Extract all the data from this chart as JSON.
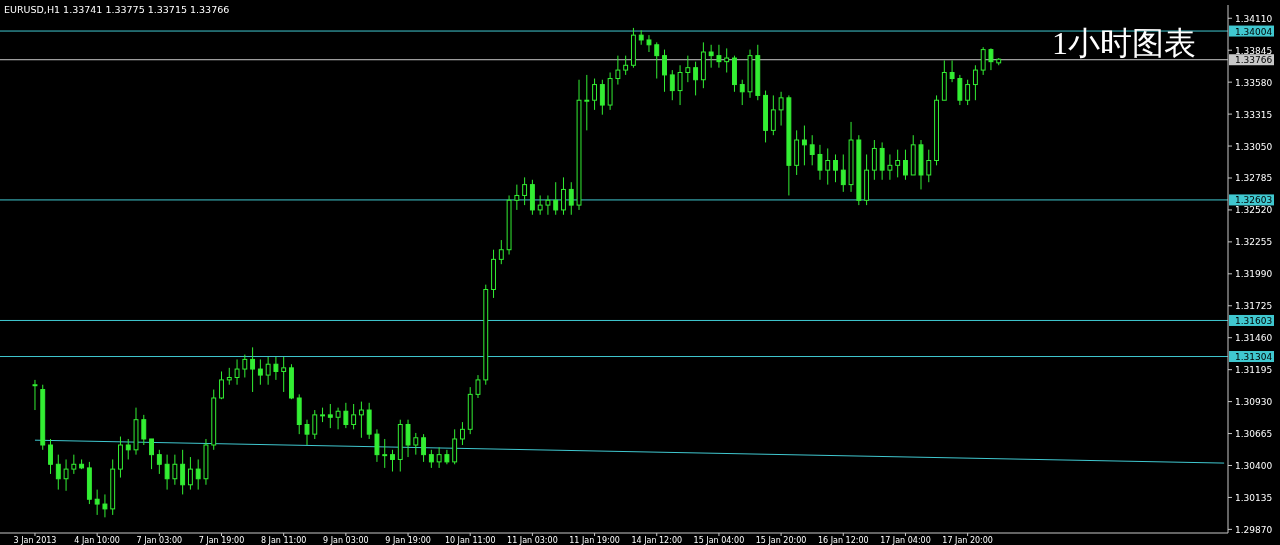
{
  "chart_data": {
    "type": "candlestick",
    "title": "EURUSD,H1  1.33741 1.33775 1.33715 1.33766",
    "annotations": [
      "1小时图表"
    ],
    "color": "#33ee33",
    "categories": [
      "3 Jan 2013",
      null,
      null,
      null,
      null,
      null,
      null,
      null,
      "4 Jan 10:00",
      null,
      null,
      null,
      null,
      null,
      null,
      null,
      "7 Jan 03:00",
      null,
      null,
      null,
      null,
      null,
      null,
      null,
      "7 Jan 19:00",
      null,
      null,
      null,
      null,
      null,
      null,
      null,
      "8 Jan 11:00",
      null,
      null,
      null,
      null,
      null,
      null,
      null,
      "9 Jan 03:00",
      null,
      null,
      null,
      null,
      null,
      null,
      null,
      "9 Jan 19:00",
      null,
      null,
      null,
      null,
      null,
      null,
      null,
      "10 Jan 11:00",
      null,
      null,
      null,
      null,
      null,
      null,
      null,
      "11 Jan 03:00",
      null,
      null,
      null,
      null,
      null,
      null,
      null,
      "11 Jan 19:00",
      null,
      null,
      null,
      null,
      null,
      null,
      null,
      "14 Jan 12:00",
      null,
      null,
      null,
      null,
      null,
      null,
      null,
      "15 Jan 04:00",
      null,
      null,
      null,
      null,
      null,
      null,
      null,
      "15 Jan 20:00",
      null,
      null,
      null,
      null,
      null,
      null,
      null,
      "16 Jan 12:00",
      null,
      null,
      null,
      null,
      null,
      null,
      null,
      "17 Jan 04:00",
      null,
      null,
      null,
      null,
      null,
      null,
      null,
      "17 Jan 20:00",
      null,
      null,
      null,
      null,
      null,
      null,
      null,
      null,
      null,
      null,
      null,
      null,
      null,
      null,
      null,
      null,
      null,
      null,
      null,
      null,
      null,
      null,
      null,
      null,
      null,
      null,
      null,
      null,
      null,
      null,
      null,
      null,
      null
    ],
    "ohlc": [
      [
        1.3107,
        1.3111,
        1.3086,
        1.3107
      ],
      [
        1.3103,
        1.3107,
        1.3053,
        1.3057
      ],
      [
        1.3057,
        1.3062,
        1.3033,
        1.3041
      ],
      [
        1.3041,
        1.3049,
        1.302,
        1.3029
      ],
      [
        1.3029,
        1.3045,
        1.3019,
        1.3037
      ],
      [
        1.3037,
        1.3049,
        1.3033,
        1.3041
      ],
      [
        1.3041,
        1.3045,
        1.3037,
        1.3038
      ],
      [
        1.3038,
        1.3043,
        1.3008,
        1.3012
      ],
      [
        1.3012,
        1.302,
        1.2999,
        1.3008
      ],
      [
        1.3008,
        1.3016,
        1.2997,
        1.3004
      ],
      [
        1.3004,
        1.3045,
        1.2999,
        1.3037
      ],
      [
        1.3037,
        1.3064,
        1.303,
        1.3057
      ],
      [
        1.3057,
        1.3062,
        1.3045,
        1.3053
      ],
      [
        1.3053,
        1.3088,
        1.3049,
        1.3078
      ],
      [
        1.3078,
        1.3082,
        1.3057,
        1.3062
      ],
      [
        1.3062,
        1.3062,
        1.3037,
        1.3049
      ],
      [
        1.3049,
        1.3053,
        1.3033,
        1.3041
      ],
      [
        1.3041,
        1.3049,
        1.302,
        1.3029
      ],
      [
        1.3029,
        1.3049,
        1.3024,
        1.3041
      ],
      [
        1.3041,
        1.3053,
        1.3016,
        1.3024
      ],
      [
        1.3024,
        1.3047,
        1.302,
        1.3037
      ],
      [
        1.3037,
        1.3045,
        1.302,
        1.3029
      ],
      [
        1.3029,
        1.3062,
        1.3024,
        1.3057
      ],
      [
        1.3057,
        1.3103,
        1.3053,
        1.3096
      ],
      [
        1.3096,
        1.3118,
        1.3095,
        1.3111
      ],
      [
        1.3111,
        1.3121,
        1.3107,
        1.3113
      ],
      [
        1.3113,
        1.3128,
        1.3107,
        1.312
      ],
      [
        1.312,
        1.3132,
        1.3113,
        1.3128
      ],
      [
        1.3128,
        1.3138,
        1.3101,
        1.312
      ],
      [
        1.312,
        1.3128,
        1.3107,
        1.3115
      ],
      [
        1.3115,
        1.313,
        1.3107,
        1.3124
      ],
      [
        1.3124,
        1.313,
        1.3111,
        1.3118
      ],
      [
        1.3118,
        1.313,
        1.3101,
        1.3121
      ],
      [
        1.3121,
        1.3124,
        1.3095,
        1.3096
      ],
      [
        1.3096,
        1.3099,
        1.3066,
        1.3074
      ],
      [
        1.3074,
        1.3078,
        1.3057,
        1.3066
      ],
      [
        1.3066,
        1.3086,
        1.3062,
        1.3082
      ],
      [
        1.3082,
        1.3088,
        1.3076,
        1.3082
      ],
      [
        1.3082,
        1.3091,
        1.3071,
        1.308
      ],
      [
        1.308,
        1.3088,
        1.307,
        1.3085
      ],
      [
        1.3085,
        1.3092,
        1.3071,
        1.3074
      ],
      [
        1.3074,
        1.3091,
        1.307,
        1.3082
      ],
      [
        1.3082,
        1.3093,
        1.3063,
        1.3086
      ],
      [
        1.3086,
        1.3092,
        1.3062,
        1.3066
      ],
      [
        1.3066,
        1.307,
        1.3043,
        1.3049
      ],
      [
        1.3049,
        1.3062,
        1.3038,
        1.3049
      ],
      [
        1.3049,
        1.3053,
        1.3035,
        1.3045
      ],
      [
        1.3045,
        1.3078,
        1.3035,
        1.3074
      ],
      [
        1.3074,
        1.3078,
        1.3047,
        1.3057
      ],
      [
        1.3057,
        1.3067,
        1.3049,
        1.3063
      ],
      [
        1.3063,
        1.3066,
        1.3043,
        1.3049
      ],
      [
        1.3049,
        1.3053,
        1.3038,
        1.3043
      ],
      [
        1.3043,
        1.3055,
        1.3038,
        1.3049
      ],
      [
        1.3049,
        1.3053,
        1.3041,
        1.3043
      ],
      [
        1.3043,
        1.307,
        1.3041,
        1.3062
      ],
      [
        1.3062,
        1.3076,
        1.3057,
        1.307
      ],
      [
        1.307,
        1.3105,
        1.3066,
        1.3099
      ],
      [
        1.3099,
        1.3115,
        1.3096,
        1.3111
      ],
      [
        1.3111,
        1.319,
        1.3107,
        1.3186
      ],
      [
        1.3186,
        1.3219,
        1.3179,
        1.3211
      ],
      [
        1.3211,
        1.3227,
        1.3207,
        1.3219
      ],
      [
        1.3219,
        1.3264,
        1.3215,
        1.326
      ],
      [
        1.326,
        1.3273,
        1.3252,
        1.3264
      ],
      [
        1.3264,
        1.3279,
        1.3256,
        1.3273
      ],
      [
        1.3273,
        1.3277,
        1.3248,
        1.3252
      ],
      [
        1.3252,
        1.3264,
        1.3248,
        1.3256
      ],
      [
        1.3256,
        1.3264,
        1.3248,
        1.326
      ],
      [
        1.326,
        1.3275,
        1.3248,
        1.3252
      ],
      [
        1.3252,
        1.3279,
        1.3248,
        1.3269
      ],
      [
        1.3269,
        1.3275,
        1.3248,
        1.3256
      ],
      [
        1.3256,
        1.336,
        1.3252,
        1.3343
      ],
      [
        1.3343,
        1.3364,
        1.3318,
        1.3343
      ],
      [
        1.3343,
        1.3361,
        1.3335,
        1.3356
      ],
      [
        1.3356,
        1.336,
        1.3331,
        1.3339
      ],
      [
        1.3339,
        1.3366,
        1.3335,
        1.3361
      ],
      [
        1.3361,
        1.338,
        1.3356,
        1.3368
      ],
      [
        1.3368,
        1.338,
        1.3364,
        1.3372
      ],
      [
        1.3372,
        1.3403,
        1.337,
        1.3397
      ],
      [
        1.3397,
        1.3401,
        1.3389,
        1.3393
      ],
      [
        1.3393,
        1.3397,
        1.3383,
        1.3389
      ],
      [
        1.3389,
        1.3391,
        1.3361,
        1.338
      ],
      [
        1.338,
        1.3385,
        1.335,
        1.3364
      ],
      [
        1.3364,
        1.3368,
        1.3343,
        1.3351
      ],
      [
        1.3351,
        1.3372,
        1.3339,
        1.3366
      ],
      [
        1.3366,
        1.338,
        1.3358,
        1.337
      ],
      [
        1.337,
        1.3375,
        1.3347,
        1.336
      ],
      [
        1.336,
        1.3391,
        1.3353,
        1.3383
      ],
      [
        1.3383,
        1.3389,
        1.337,
        1.338
      ],
      [
        1.338,
        1.3389,
        1.337,
        1.3375
      ],
      [
        1.3375,
        1.3386,
        1.3366,
        1.3378
      ],
      [
        1.3378,
        1.338,
        1.335,
        1.3356
      ],
      [
        1.3356,
        1.336,
        1.3339,
        1.335
      ],
      [
        1.335,
        1.3385,
        1.3345,
        1.338
      ],
      [
        1.338,
        1.3389,
        1.3343,
        1.3347
      ],
      [
        1.3347,
        1.3351,
        1.3308,
        1.3318
      ],
      [
        1.3318,
        1.3347,
        1.3314,
        1.3335
      ],
      [
        1.3335,
        1.335,
        1.3322,
        1.3345
      ],
      [
        1.3345,
        1.3347,
        1.3264,
        1.3289
      ],
      [
        1.3289,
        1.3318,
        1.3281,
        1.331
      ],
      [
        1.331,
        1.3322,
        1.3289,
        1.3306
      ],
      [
        1.3306,
        1.3314,
        1.3289,
        1.3298
      ],
      [
        1.3298,
        1.3306,
        1.3277,
        1.3285
      ],
      [
        1.3285,
        1.3303,
        1.3273,
        1.3293
      ],
      [
        1.3293,
        1.3298,
        1.3275,
        1.3285
      ],
      [
        1.3285,
        1.3298,
        1.3267,
        1.3273
      ],
      [
        1.3273,
        1.3325,
        1.3267,
        1.331
      ],
      [
        1.331,
        1.3314,
        1.3256,
        1.326
      ],
      [
        1.326,
        1.3298,
        1.3256,
        1.3285
      ],
      [
        1.3285,
        1.331,
        1.3277,
        1.3303
      ],
      [
        1.3303,
        1.3308,
        1.3277,
        1.3285
      ],
      [
        1.3285,
        1.3298,
        1.3277,
        1.3289
      ],
      [
        1.3289,
        1.3302,
        1.3279,
        1.3293
      ],
      [
        1.3293,
        1.3302,
        1.3277,
        1.3281
      ],
      [
        1.3281,
        1.3314,
        1.3281,
        1.3306
      ],
      [
        1.3306,
        1.331,
        1.3269,
        1.3281
      ],
      [
        1.3281,
        1.3302,
        1.3275,
        1.3293
      ],
      [
        1.3293,
        1.3347,
        1.3289,
        1.3343
      ],
      [
        1.3343,
        1.3376,
        1.3343,
        1.3366
      ],
      [
        1.3366,
        1.3376,
        1.3358,
        1.3361
      ],
      [
        1.3361,
        1.3364,
        1.3339,
        1.3343
      ],
      [
        1.3343,
        1.336,
        1.3339,
        1.3356
      ],
      [
        1.3356,
        1.3372,
        1.3343,
        1.3368
      ],
      [
        1.3368,
        1.3387,
        1.3364,
        1.3385
      ],
      [
        1.3385,
        1.3386,
        1.3368,
        1.3375
      ],
      [
        1.3374,
        1.3378,
        1.3372,
        1.3377
      ],
      null,
      null,
      null,
      null,
      null,
      null,
      null,
      null,
      null,
      null,
      null,
      null,
      null,
      null,
      null,
      null,
      null,
      null,
      null,
      null,
      null,
      null,
      null,
      null,
      null,
      null,
      null,
      null,
      null
    ],
    "series": [
      {
        "type": "line",
        "values": [
          1.3061,
          null,
          null,
          null,
          null,
          null,
          null,
          null,
          null,
          null,
          null,
          null,
          null,
          null,
          null,
          null,
          null,
          null,
          null,
          null,
          null,
          null,
          null,
          null,
          null,
          null,
          null,
          null,
          null,
          null,
          null,
          null,
          null,
          null,
          null,
          null,
          null,
          null,
          null,
          null,
          null,
          null,
          null,
          null,
          null,
          null,
          null,
          null,
          null,
          null,
          null,
          null,
          null,
          null,
          null,
          null,
          null,
          null,
          null,
          null,
          null,
          null,
          null,
          null,
          null,
          null,
          null,
          null,
          null,
          null,
          null,
          null,
          null,
          null,
          null,
          null,
          null,
          null,
          null,
          null,
          null,
          null,
          null,
          null,
          null,
          null,
          null,
          null,
          null,
          null,
          null,
          null,
          null,
          null,
          null,
          null,
          null,
          null,
          null,
          null,
          null,
          null,
          null,
          null,
          null,
          null,
          null,
          null,
          null,
          null,
          null,
          null,
          null,
          null,
          null,
          null,
          null,
          null,
          null,
          null,
          null,
          null,
          null,
          null,
          null,
          null,
          null,
          null,
          null,
          null,
          null,
          null,
          null,
          null,
          null,
          null,
          null,
          null,
          null,
          null,
          null,
          null,
          null,
          null,
          null,
          null,
          null,
          null,
          null,
          null,
          null,
          null,
          null,
          1.3042
        ],
        "color": "#40c8d0"
      }
    ],
    "ylim": [
      1.2984,
      1.3422
    ],
    "yticks": [
      {
        "value": 1.3411,
        "label": "1.34110"
      },
      {
        "value": 1.33845,
        "label": "1.33845"
      },
      {
        "value": 1.3358,
        "label": "1.33580"
      },
      {
        "value": 1.33315,
        "label": "1.33315"
      },
      {
        "value": 1.3305,
        "label": "1.33050"
      },
      {
        "value": 1.32785,
        "label": "1.32785"
      },
      {
        "value": 1.3252,
        "label": "1.32520"
      },
      {
        "value": 1.32255,
        "label": "1.32255"
      },
      {
        "value": 1.3199,
        "label": "1.31990"
      },
      {
        "value": 1.31725,
        "label": "1.31725"
      },
      {
        "value": 1.3146,
        "label": "1.31460"
      },
      {
        "value": 1.31195,
        "label": "1.31195"
      },
      {
        "value": 1.3093,
        "label": "1.30930"
      },
      {
        "value": 1.30665,
        "label": "1.30665"
      },
      {
        "value": 1.304,
        "label": "1.30400"
      },
      {
        "value": 1.30135,
        "label": "1.30135"
      },
      {
        "value": 1.2987,
        "label": "1.29870"
      }
    ],
    "ref_lines": [
      {
        "axis": "y",
        "value": 1.34004,
        "label": "1.34004",
        "color": "#40c8d0"
      },
      {
        "axis": "y",
        "value": 1.33766,
        "label": "1.33766",
        "color": "#c8c8c8"
      },
      {
        "axis": "y",
        "value": 1.32603,
        "label": "1.32603",
        "color": "#40c8d0"
      },
      {
        "axis": "y",
        "value": 1.31603,
        "label": "1.31603",
        "color": "#40c8d0"
      },
      {
        "axis": "y",
        "value": 1.31304,
        "label": "1.31304",
        "color": "#40c8d0"
      }
    ]
  }
}
